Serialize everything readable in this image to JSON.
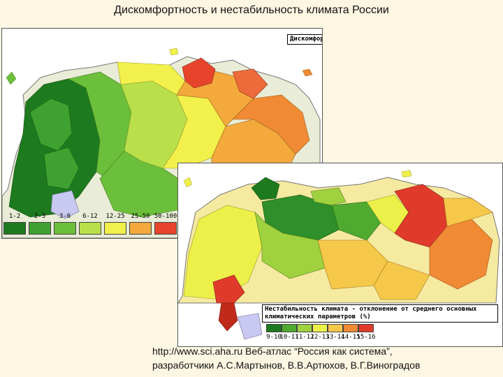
{
  "slide": {
    "title": "Дискомфортность и нестабильность климата  России"
  },
  "map_discomfort": {
    "heading": "Дискомфортность климата - баллы",
    "legend": [
      {
        "label": "1-2",
        "color": "#1e7a1e"
      },
      {
        "label": "2-3",
        "color": "#3fa12f"
      },
      {
        "label": "3-6",
        "color": "#6cbf3a"
      },
      {
        "label": "6-12",
        "color": "#b9e04a"
      },
      {
        "label": "12-25",
        "color": "#f2f04a"
      },
      {
        "label": "25-50",
        "color": "#f4a93c"
      },
      {
        "label": "50-100",
        "color": "#e8442c"
      }
    ]
  },
  "map_instability": {
    "heading": "Нестабильность климата - отклонение от среднего основных климатических параметров (%)",
    "legend": [
      {
        "label": "9-10",
        "color": "#1e7a1e"
      },
      {
        "label": "10-11",
        "color": "#4faa2f"
      },
      {
        "label": "11-12",
        "color": "#9fd23e"
      },
      {
        "label": "12-13",
        "color": "#eef04a"
      },
      {
        "label": "13-14",
        "color": "#f6c84a"
      },
      {
        "label": "14-15",
        "color": "#f08a34"
      },
      {
        "label": "15-16",
        "color": "#e03a2a"
      }
    ]
  },
  "credit": {
    "line1": "http://www.sci.aha.ru Веб-атлас “Россия как система”,",
    "line2": "разработчики А.С.Мартынов, В.В.Артюхов, В.Г.Виноградов"
  }
}
